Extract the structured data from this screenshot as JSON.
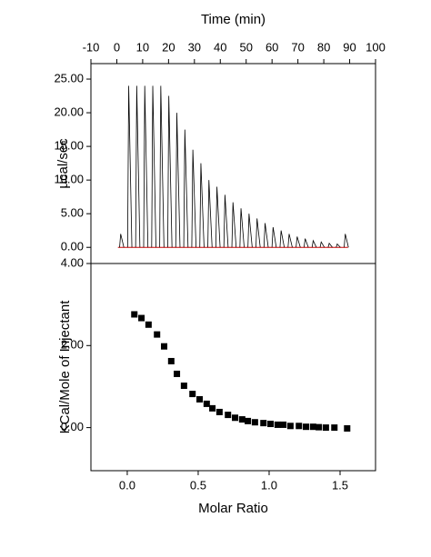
{
  "chart_data": [
    {
      "type": "spike",
      "x_label": "Time (min)",
      "y_label": "µcal/sec",
      "xaxis_position": "top",
      "x": [
        1.5,
        4.6,
        7.7,
        10.8,
        13.9,
        17.0,
        20.1,
        23.2,
        26.3,
        29.4,
        32.5,
        35.6,
        38.7,
        41.8,
        44.9,
        48.0,
        51.1,
        54.2,
        57.3,
        60.4,
        63.5,
        66.6,
        69.7,
        72.8,
        75.9,
        79.0,
        82.1,
        85.2,
        88.3
      ],
      "values": [
        2,
        24,
        24,
        24,
        24,
        24,
        22.5,
        20,
        17.5,
        14.5,
        12.5,
        10,
        9,
        7.8,
        6.7,
        5.8,
        5,
        4.3,
        3.6,
        3,
        2.5,
        2,
        1.6,
        1.3,
        1,
        0.8,
        0.6,
        0.5,
        2
      ],
      "color": "#000000",
      "baseline_color": "#cc0000",
      "xlim": [
        -10,
        100
      ],
      "xticks": [
        -10,
        0,
        10,
        20,
        30,
        40,
        50,
        60,
        70,
        80,
        90,
        100
      ],
      "ylim": [
        -2.4,
        27.3
      ],
      "yticks": [
        {
          "value": 0,
          "label": "0.00"
        },
        {
          "value": 5,
          "label": "5.00"
        },
        {
          "value": 10,
          "label": "10.00"
        },
        {
          "value": 15,
          "label": "15.00"
        },
        {
          "value": 20,
          "label": "20.00"
        },
        {
          "value": 25,
          "label": "25.00"
        }
      ]
    },
    {
      "type": "scatter",
      "x_label": "Molar Ratio",
      "y_label": "KCal/Mole of Injectant",
      "xaxis_position": "bottom",
      "x": [
        0.05,
        0.1,
        0.15,
        0.21,
        0.26,
        0.31,
        0.35,
        0.4,
        0.46,
        0.51,
        0.56,
        0.6,
        0.65,
        0.71,
        0.76,
        0.81,
        0.85,
        0.9,
        0.96,
        1.01,
        1.06,
        1.1,
        1.15,
        1.21,
        1.26,
        1.31,
        1.35,
        1.4,
        1.46,
        1.55
      ],
      "values": [
        2.76,
        2.67,
        2.51,
        2.27,
        1.98,
        1.62,
        1.31,
        1.02,
        0.82,
        0.69,
        0.58,
        0.47,
        0.38,
        0.31,
        0.24,
        0.2,
        0.16,
        0.13,
        0.11,
        0.09,
        0.07,
        0.07,
        0.04,
        0.04,
        0.02,
        0.02,
        0.01,
        0.0,
        0.0,
        -0.02
      ],
      "color": "#000000",
      "xlim": [
        -0.256,
        1.75
      ],
      "xticks": [
        {
          "value": 0,
          "label": "0.0"
        },
        {
          "value": 0.5,
          "label": "0.5"
        },
        {
          "value": 1,
          "label": "1.0"
        },
        {
          "value": 1.5,
          "label": "1.5"
        }
      ],
      "ylim": [
        -1.05,
        4.0
      ],
      "yticks": [
        {
          "value": 0,
          "label": "0.00"
        },
        {
          "value": 2,
          "label": "2.00"
        },
        {
          "value": 4,
          "label": "4.00"
        }
      ]
    }
  ]
}
